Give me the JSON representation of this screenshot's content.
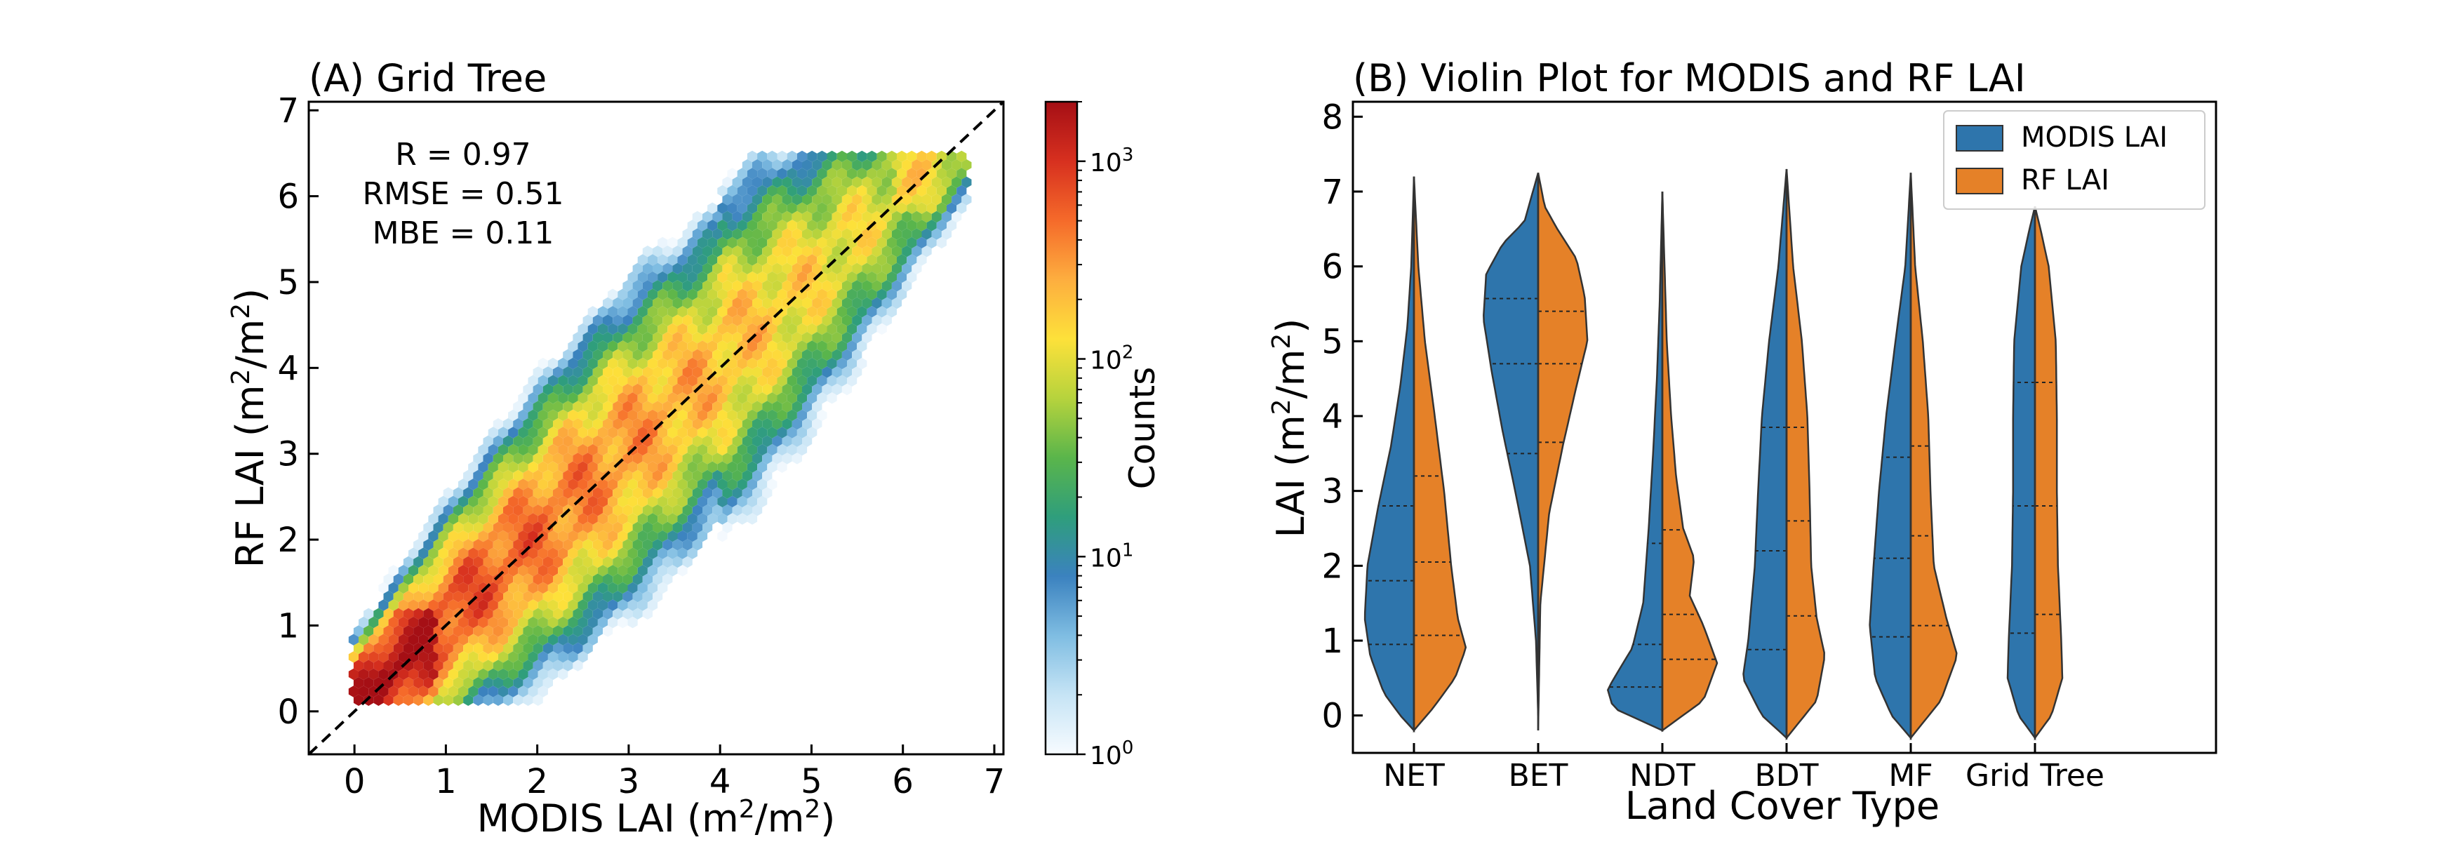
{
  "chart_data": [
    {
      "type": "hexbin",
      "title": "(A) Grid Tree",
      "xlabel_pre": "MODIS LAI (m",
      "xlabel_sup": "2",
      "xlabel_post": "/m",
      "xlabel_sup2": "2",
      "xlabel_end": ")",
      "ylabel_pre": "RF LAI (m",
      "ylabel_sup": "2",
      "ylabel_post": "/m",
      "ylabel_sup2": "2",
      "ylabel_end": ")",
      "xlim": [
        -0.5,
        7.1
      ],
      "ylim": [
        -0.5,
        7.1
      ],
      "xticks": [
        "0",
        "1",
        "2",
        "3",
        "4",
        "5",
        "6",
        "7"
      ],
      "yticks": [
        "0",
        "1",
        "2",
        "3",
        "4",
        "5",
        "6",
        "7"
      ],
      "one_to_one_line": true,
      "stats": [
        "R = 0.97",
        "RMSE = 0.51",
        "MBE = 0.11"
      ],
      "colorbar": {
        "label": "Counts",
        "scale": "log",
        "range": [
          1,
          2000
        ],
        "tick_base": "10",
        "tick_exponents": [
          "0",
          "1",
          "2",
          "3"
        ],
        "colormap": [
          "#f7fbff",
          "#c6e4f5",
          "#7fbde2",
          "#3b82bf",
          "#2f9e7c",
          "#5ab54b",
          "#b6d33d",
          "#fde13a",
          "#fdae3f",
          "#f56a2a",
          "#d7301f",
          "#a50f15"
        ]
      },
      "density_model": {
        "x_range": [
          0,
          6.7
        ],
        "fit_slope": 0.97,
        "fit_intercept": 0.11,
        "residual_sd": 0.51,
        "peak_at_low_lai": true
      }
    },
    {
      "type": "violin",
      "title": "(B) Violin Plot for MODIS and RF LAI",
      "xlabel": "Land Cover Type",
      "ylabel_pre": "LAI (m",
      "ylabel_sup": "2",
      "ylabel_post": "/m",
      "ylabel_sup2": "2",
      "ylabel_end": ")",
      "ylim": [
        -0.5,
        8.2
      ],
      "yticks": [
        "0",
        "1",
        "2",
        "3",
        "4",
        "5",
        "6",
        "7",
        "8"
      ],
      "split": true,
      "legend": {
        "position": "top-right"
      },
      "series": [
        {
          "name": "MODIS LAI",
          "color": "#2e75ac"
        },
        {
          "name": "RF LAI",
          "color": "#e58128"
        }
      ],
      "categories": [
        "NET",
        "BET",
        "NDT",
        "BDT",
        "MF",
        "Grid Tree"
      ],
      "violins": [
        {
          "modis": {
            "min": -0.2,
            "max": 7.2,
            "quartiles": [
              0.95,
              1.8,
              2.8
            ],
            "profile": [
              [
                -0.2,
                0
              ],
              [
                0,
                0.25
              ],
              [
                0.3,
                0.55
              ],
              [
                0.8,
                0.8
              ],
              [
                1.3,
                0.9
              ],
              [
                2.0,
                0.85
              ],
              [
                2.8,
                0.65
              ],
              [
                3.6,
                0.42
              ],
              [
                4.4,
                0.25
              ],
              [
                5.2,
                0.12
              ],
              [
                6.0,
                0.05
              ],
              [
                7.2,
                0
              ]
            ]
          },
          "rf": {
            "min": -0.2,
            "max": 7.2,
            "quartiles": [
              1.07,
              2.05,
              3.2
            ],
            "profile": [
              [
                -0.2,
                0
              ],
              [
                0.1,
                0.35
              ],
              [
                0.5,
                0.75
              ],
              [
                0.9,
                0.95
              ],
              [
                1.3,
                0.8
              ],
              [
                2.0,
                0.68
              ],
              [
                3.0,
                0.55
              ],
              [
                4.0,
                0.38
              ],
              [
                5.0,
                0.2
              ],
              [
                6.0,
                0.08
              ],
              [
                7.2,
                0
              ]
            ]
          }
        },
        {
          "modis": {
            "min": 0.0,
            "max": 7.25,
            "quartiles": [
              3.5,
              4.7,
              5.57
            ],
            "profile": [
              [
                0.0,
                0
              ],
              [
                1.0,
                0.04
              ],
              [
                2.0,
                0.15
              ],
              [
                3.0,
                0.42
              ],
              [
                3.8,
                0.65
              ],
              [
                4.6,
                0.85
              ],
              [
                5.3,
                1.0
              ],
              [
                5.9,
                0.95
              ],
              [
                6.3,
                0.65
              ],
              [
                6.6,
                0.25
              ],
              [
                7.25,
                0
              ]
            ]
          },
          "rf": {
            "min": -0.2,
            "max": 7.25,
            "quartiles": [
              3.65,
              4.7,
              5.4
            ],
            "profile": [
              [
                -0.2,
                0
              ],
              [
                1.5,
                0.04
              ],
              [
                2.7,
                0.2
              ],
              [
                3.6,
                0.45
              ],
              [
                4.4,
                0.7
              ],
              [
                5.0,
                0.9
              ],
              [
                5.6,
                0.85
              ],
              [
                6.1,
                0.7
              ],
              [
                6.5,
                0.35
              ],
              [
                6.8,
                0.12
              ],
              [
                7.25,
                0
              ]
            ]
          }
        },
        {
          "modis": {
            "min": -0.2,
            "max": 7.0,
            "quartiles": [
              0.38,
              0.95,
              2.3
            ],
            "profile": [
              [
                -0.2,
                0
              ],
              [
                0.1,
                0.9
              ],
              [
                0.35,
                1.0
              ],
              [
                0.6,
                0.8
              ],
              [
                0.9,
                0.55
              ],
              [
                1.5,
                0.35
              ],
              [
                2.5,
                0.25
              ],
              [
                3.5,
                0.17
              ],
              [
                4.5,
                0.1
              ],
              [
                5.5,
                0.05
              ],
              [
                7.0,
                0
              ]
            ]
          },
          "rf": {
            "min": -0.2,
            "max": 7.0,
            "quartiles": [
              0.75,
              1.35,
              2.48
            ],
            "profile": [
              [
                -0.2,
                0
              ],
              [
                0.2,
                0.75
              ],
              [
                0.7,
                1.0
              ],
              [
                1.2,
                0.75
              ],
              [
                1.6,
                0.5
              ],
              [
                2.1,
                0.58
              ],
              [
                2.5,
                0.38
              ],
              [
                3.2,
                0.25
              ],
              [
                4.0,
                0.16
              ],
              [
                5.0,
                0.08
              ],
              [
                7.0,
                0
              ]
            ]
          }
        },
        {
          "modis": {
            "min": -0.3,
            "max": 7.3,
            "quartiles": [
              0.88,
              2.2,
              3.85
            ],
            "profile": [
              [
                -0.3,
                0
              ],
              [
                0,
                0.45
              ],
              [
                0.5,
                0.8
              ],
              [
                1.0,
                0.7
              ],
              [
                2.0,
                0.58
              ],
              [
                3.0,
                0.52
              ],
              [
                4.0,
                0.45
              ],
              [
                5.0,
                0.32
              ],
              [
                6.0,
                0.15
              ],
              [
                7.3,
                0
              ]
            ]
          },
          "rf": {
            "min": -0.3,
            "max": 7.3,
            "quartiles": [
              1.33,
              2.6,
              3.85
            ],
            "profile": [
              [
                -0.3,
                0
              ],
              [
                0.2,
                0.55
              ],
              [
                0.8,
                0.7
              ],
              [
                1.3,
                0.55
              ],
              [
                2.0,
                0.45
              ],
              [
                3.0,
                0.42
              ],
              [
                4.0,
                0.38
              ],
              [
                5.0,
                0.28
              ],
              [
                6.0,
                0.12
              ],
              [
                7.3,
                0
              ]
            ]
          }
        },
        {
          "modis": {
            "min": -0.3,
            "max": 7.25,
            "quartiles": [
              1.05,
              2.1,
              3.45
            ],
            "profile": [
              [
                -0.3,
                0
              ],
              [
                0,
                0.35
              ],
              [
                0.5,
                0.65
              ],
              [
                1.2,
                0.75
              ],
              [
                2.0,
                0.68
              ],
              [
                3.0,
                0.58
              ],
              [
                4.0,
                0.45
              ],
              [
                5.0,
                0.28
              ],
              [
                6.0,
                0.1
              ],
              [
                7.25,
                0
              ]
            ]
          },
          "rf": {
            "min": -0.3,
            "max": 7.25,
            "quartiles": [
              1.2,
              2.4,
              3.6
            ],
            "profile": [
              [
                -0.3,
                0
              ],
              [
                0.2,
                0.55
              ],
              [
                0.8,
                0.85
              ],
              [
                1.3,
                0.65
              ],
              [
                2.0,
                0.42
              ],
              [
                3.0,
                0.36
              ],
              [
                4.0,
                0.32
              ],
              [
                5.0,
                0.22
              ],
              [
                6.0,
                0.08
              ],
              [
                7.25,
                0
              ]
            ]
          }
        },
        {
          "modis": {
            "min": -0.3,
            "max": 6.8,
            "quartiles": [
              1.1,
              2.8,
              4.45
            ],
            "profile": [
              [
                -0.3,
                0
              ],
              [
                0,
                0.3
              ],
              [
                0.5,
                0.5
              ],
              [
                1.0,
                0.48
              ],
              [
                2.0,
                0.42
              ],
              [
                3.0,
                0.4
              ],
              [
                4.0,
                0.4
              ],
              [
                5.0,
                0.38
              ],
              [
                6.0,
                0.25
              ],
              [
                6.5,
                0.1
              ],
              [
                6.8,
                0
              ]
            ]
          },
          "rf": {
            "min": -0.3,
            "max": 6.8,
            "quartiles": [
              1.35,
              2.8,
              4.45
            ],
            "profile": [
              [
                -0.3,
                0
              ],
              [
                0,
                0.3
              ],
              [
                0.5,
                0.5
              ],
              [
                1.0,
                0.48
              ],
              [
                2.0,
                0.42
              ],
              [
                3.0,
                0.4
              ],
              [
                4.0,
                0.4
              ],
              [
                5.0,
                0.38
              ],
              [
                6.0,
                0.25
              ],
              [
                6.5,
                0.1
              ],
              [
                6.8,
                0
              ]
            ]
          }
        }
      ]
    }
  ]
}
